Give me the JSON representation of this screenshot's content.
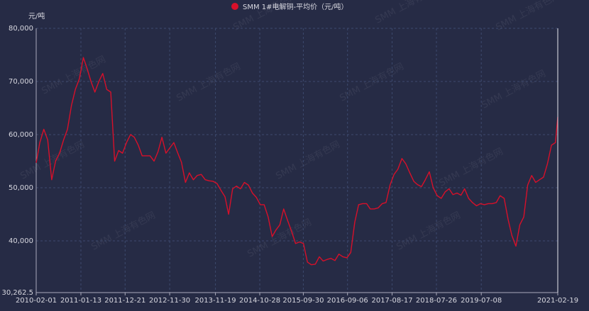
{
  "chart_data": {
    "type": "line",
    "legend": "SMM 1#电解铜-平均价（元/吨）",
    "y_label": "元/吨",
    "watermark": "SMM 上海有色网",
    "x": [
      "2010-02-01",
      "2010-03-01",
      "2010-04-01",
      "2010-05-01",
      "2010-06-01",
      "2010-07-01",
      "2010-08-01",
      "2010-09-01",
      "2010-10-01",
      "2010-11-01",
      "2010-12-01",
      "2011-01-01",
      "2011-02-01",
      "2011-03-01",
      "2011-04-01",
      "2011-05-01",
      "2011-06-01",
      "2011-07-01",
      "2011-08-01",
      "2011-09-01",
      "2011-10-01",
      "2011-11-01",
      "2011-12-01",
      "2012-01-01",
      "2012-02-01",
      "2012-03-01",
      "2012-04-01",
      "2012-05-01",
      "2012-06-01",
      "2012-07-01",
      "2012-08-01",
      "2012-09-01",
      "2012-10-01",
      "2012-11-01",
      "2012-12-01",
      "2013-01-01",
      "2013-02-01",
      "2013-03-01",
      "2013-04-01",
      "2013-05-01",
      "2013-06-01",
      "2013-07-01",
      "2013-08-01",
      "2013-09-01",
      "2013-10-01",
      "2013-11-01",
      "2013-12-01",
      "2014-01-01",
      "2014-02-01",
      "2014-03-01",
      "2014-04-01",
      "2014-05-01",
      "2014-06-01",
      "2014-07-01",
      "2014-08-01",
      "2014-09-01",
      "2014-10-01",
      "2014-11-01",
      "2014-12-01",
      "2015-01-01",
      "2015-02-01",
      "2015-03-01",
      "2015-04-01",
      "2015-05-01",
      "2015-06-01",
      "2015-07-01",
      "2015-08-01",
      "2015-09-01",
      "2015-10-01",
      "2015-11-01",
      "2015-12-01",
      "2016-01-01",
      "2016-02-01",
      "2016-03-01",
      "2016-04-01",
      "2016-05-01",
      "2016-06-01",
      "2016-07-01",
      "2016-08-01",
      "2016-09-01",
      "2016-10-01",
      "2016-11-01",
      "2016-12-01",
      "2017-01-01",
      "2017-02-01",
      "2017-03-01",
      "2017-04-01",
      "2017-05-01",
      "2017-06-01",
      "2017-07-01",
      "2017-08-01",
      "2017-09-01",
      "2017-10-01",
      "2017-11-01",
      "2017-12-01",
      "2018-01-01",
      "2018-02-01",
      "2018-03-01",
      "2018-04-01",
      "2018-05-01",
      "2018-06-01",
      "2018-07-01",
      "2018-08-01",
      "2018-09-01",
      "2018-10-01",
      "2018-11-01",
      "2018-12-01",
      "2019-01-01",
      "2019-02-01",
      "2019-03-01",
      "2019-04-01",
      "2019-05-01",
      "2019-06-01",
      "2019-07-01",
      "2019-08-01",
      "2019-09-01",
      "2019-10-01",
      "2019-11-01",
      "2019-12-01",
      "2020-01-01",
      "2020-02-01",
      "2020-03-01",
      "2020-04-01",
      "2020-05-01",
      "2020-06-01",
      "2020-07-01",
      "2020-08-01",
      "2020-09-01",
      "2020-10-01",
      "2020-11-01",
      "2020-12-01",
      "2021-01-01",
      "2021-02-01",
      "2021-02-19"
    ],
    "series": [
      {
        "name": "SMM 1#电解铜-平均价（元/吨）",
        "color": "#d7102a",
        "values": [
          54700,
          58500,
          61000,
          59000,
          51500,
          55000,
          56500,
          59000,
          61000,
          65500,
          68500,
          70500,
          74500,
          72500,
          70000,
          68000,
          70000,
          71500,
          68500,
          68000,
          55000,
          57000,
          56500,
          58500,
          60000,
          59500,
          58000,
          56000,
          56000,
          56000,
          55000,
          56800,
          59500,
          56500,
          57500,
          58500,
          56500,
          54800,
          51000,
          52800,
          51500,
          52300,
          52500,
          51500,
          51300,
          51200,
          50800,
          49500,
          48300,
          45000,
          49800,
          50300,
          49800,
          51000,
          50500,
          49000,
          48200,
          46800,
          46800,
          44500,
          40800,
          42000,
          43000,
          46000,
          43800,
          41800,
          39500,
          39800,
          39500,
          36000,
          35500,
          35600,
          37000,
          36200,
          36500,
          36700,
          36300,
          37500,
          37000,
          36800,
          37800,
          43500,
          46800,
          47000,
          47000,
          46000,
          46000,
          46200,
          47000,
          47200,
          50500,
          52500,
          53500,
          55500,
          54500,
          52800,
          51200,
          50600,
          50200,
          51500,
          53000,
          50000,
          48500,
          48000,
          49200,
          49800,
          48700,
          49000,
          48600,
          49800,
          48000,
          47200,
          46600,
          47000,
          46800,
          47000,
          47000,
          47200,
          48500,
          48000,
          44000,
          41000,
          39000,
          43000,
          44500,
          50500,
          52300,
          51000,
          51500,
          52000,
          54500,
          58000,
          58500,
          63300
        ]
      }
    ],
    "xlim": [
      "2010-02-01",
      "2021-02-19"
    ],
    "xticks": [
      "2010-02-01",
      "2011-01-13",
      "2011-12-21",
      "2012-11-30",
      "2013-11-19",
      "2014-10-28",
      "2015-09-30",
      "2016-09-06",
      "2017-08-17",
      "2018-07-26",
      "2019-07-08",
      "2021-02-19"
    ],
    "ylim": [
      30262.5,
      80000
    ],
    "yticks": [
      {
        "value": 30262.5,
        "label": "30,262.5"
      },
      {
        "value": 40000,
        "label": "40,000"
      },
      {
        "value": 50000,
        "label": "50,000"
      },
      {
        "value": 60000,
        "label": "60,000"
      },
      {
        "value": 70000,
        "label": "70,000"
      },
      {
        "value": 80000,
        "label": "80,000"
      }
    ],
    "grid": true
  }
}
